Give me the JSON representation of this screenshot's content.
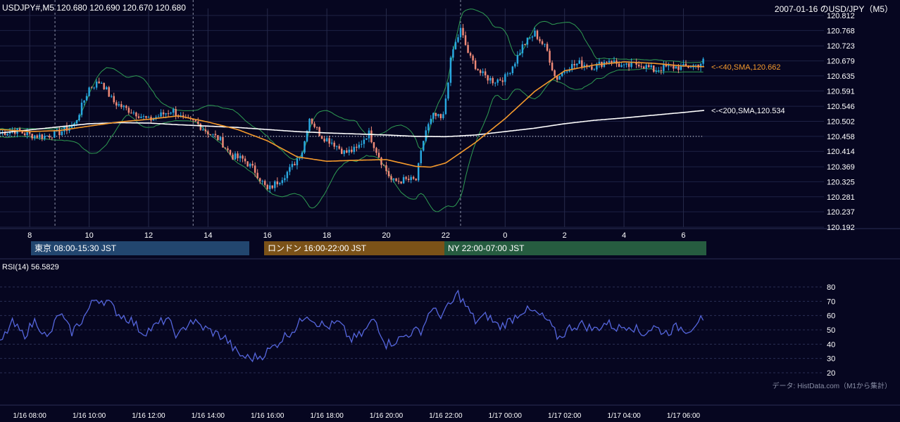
{
  "header": {
    "symbol_line": "USDJPY#,M5 120.680 120.690 120.670 120.680",
    "title": "2007-01-16 のUSD/JPY（M5）"
  },
  "colors": {
    "background": "#060620",
    "grid": "#1e2244",
    "candle_up": "#29a8e0",
    "candle_down": "#ef8a78",
    "bollinger": "#2e9b52",
    "sma40": "#f59a2c",
    "sma200": "#ffffff",
    "rsi": "#5566dd",
    "tokyo": "#2a4f7d",
    "london": "#7b5218",
    "ny": "#2a6045"
  },
  "sessions": [
    {
      "label": "東京 08:00-15:30 JST",
      "color": "#22466f"
    },
    {
      "label": "ロンドン 16:00-22:00 JST",
      "color": "#7b5218"
    },
    {
      "label": "NY 22:00-07:00 JST",
      "color": "#265c40"
    }
  ],
  "rsi": {
    "label": "RSI(14) 56.5829"
  },
  "credit": "データ: HistData.com（M1から集計）",
  "chart_data": {
    "type": "candlestick",
    "title": "2007-01-16 のUSD/JPY（M5）",
    "y_ticks": [
      "120.812",
      "120.768",
      "120.723",
      "120.679",
      "120.635",
      "120.591",
      "120.546",
      "120.502",
      "120.458",
      "120.414",
      "120.369",
      "120.325",
      "120.281",
      "120.237",
      "120.192"
    ],
    "ylim": [
      120.192,
      120.812
    ],
    "x_hour_ticks": [
      "8",
      "10",
      "12",
      "14",
      "16",
      "18",
      "20",
      "22",
      "0",
      "2",
      "4",
      "6"
    ],
    "x_hour_values": [
      8,
      10,
      12,
      14,
      16,
      18,
      20,
      22,
      24,
      26,
      28,
      30
    ],
    "xlim_hours": [
      7.0,
      30.7
    ],
    "dashed_verticals_hours": [
      8.85,
      13.5,
      22.5
    ],
    "reference_level": 120.458,
    "anchors": [
      [
        7.0,
        120.468
      ],
      [
        7.5,
        120.475
      ],
      [
        8.0,
        120.462
      ],
      [
        8.5,
        120.458
      ],
      [
        9.0,
        120.47
      ],
      [
        9.5,
        120.492
      ],
      [
        10.0,
        120.6
      ],
      [
        10.4,
        120.62
      ],
      [
        10.8,
        120.56
      ],
      [
        11.2,
        120.54
      ],
      [
        11.6,
        120.525
      ],
      [
        12.0,
        120.505
      ],
      [
        12.4,
        120.52
      ],
      [
        12.8,
        120.535
      ],
      [
        13.2,
        120.505
      ],
      [
        13.6,
        120.498
      ],
      [
        14.0,
        120.47
      ],
      [
        14.4,
        120.448
      ],
      [
        14.8,
        120.4
      ],
      [
        15.2,
        120.39
      ],
      [
        15.6,
        120.355
      ],
      [
        16.0,
        120.3
      ],
      [
        16.4,
        120.33
      ],
      [
        16.8,
        120.365
      ],
      [
        17.2,
        120.42
      ],
      [
        17.4,
        120.515
      ],
      [
        17.8,
        120.46
      ],
      [
        18.2,
        120.44
      ],
      [
        18.6,
        120.41
      ],
      [
        19.0,
        120.42
      ],
      [
        19.4,
        120.47
      ],
      [
        19.8,
        120.39
      ],
      [
        20.2,
        120.325
      ],
      [
        20.6,
        120.33
      ],
      [
        21.0,
        120.33
      ],
      [
        21.3,
        120.47
      ],
      [
        21.6,
        120.52
      ],
      [
        21.9,
        120.505
      ],
      [
        22.2,
        120.7
      ],
      [
        22.5,
        120.77
      ],
      [
        22.8,
        120.69
      ],
      [
        23.2,
        120.64
      ],
      [
        23.6,
        120.62
      ],
      [
        24.0,
        120.63
      ],
      [
        24.3,
        120.672
      ],
      [
        24.6,
        120.725
      ],
      [
        25.0,
        120.76
      ],
      [
        25.4,
        120.712
      ],
      [
        25.7,
        120.625
      ],
      [
        26.1,
        120.66
      ],
      [
        26.5,
        120.672
      ],
      [
        27.0,
        120.662
      ],
      [
        27.5,
        120.682
      ],
      [
        28.0,
        120.66
      ],
      [
        28.5,
        120.672
      ],
      [
        29.0,
        120.652
      ],
      [
        29.5,
        120.662
      ],
      [
        30.0,
        120.66
      ],
      [
        30.5,
        120.668
      ],
      [
        30.7,
        120.68
      ]
    ],
    "sma40_anchors": [
      [
        7.0,
        120.478
      ],
      [
        8.0,
        120.472
      ],
      [
        9.0,
        120.475
      ],
      [
        10.0,
        120.488
      ],
      [
        11.0,
        120.5
      ],
      [
        12.0,
        120.508
      ],
      [
        13.0,
        120.518
      ],
      [
        14.0,
        120.5
      ],
      [
        15.0,
        120.478
      ],
      [
        16.0,
        120.445
      ],
      [
        17.0,
        120.398
      ],
      [
        18.0,
        120.385
      ],
      [
        19.0,
        120.388
      ],
      [
        20.0,
        120.39
      ],
      [
        21.0,
        120.37
      ],
      [
        21.5,
        120.368
      ],
      [
        22.0,
        120.38
      ],
      [
        23.0,
        120.44
      ],
      [
        24.0,
        120.51
      ],
      [
        25.0,
        120.59
      ],
      [
        26.0,
        120.65
      ],
      [
        27.0,
        120.667
      ],
      [
        28.0,
        120.676
      ],
      [
        29.0,
        120.672
      ],
      [
        30.0,
        120.664
      ],
      [
        30.7,
        120.662
      ]
    ],
    "sma200_anchors": [
      [
        7.0,
        120.468
      ],
      [
        8.0,
        120.477
      ],
      [
        9.0,
        120.486
      ],
      [
        10.0,
        120.495
      ],
      [
        11.0,
        120.498
      ],
      [
        12.0,
        120.497
      ],
      [
        13.0,
        120.492
      ],
      [
        14.0,
        120.488
      ],
      [
        15.0,
        120.484
      ],
      [
        16.0,
        120.478
      ],
      [
        17.0,
        120.472
      ],
      [
        18.0,
        120.468
      ],
      [
        19.0,
        120.465
      ],
      [
        20.0,
        120.462
      ],
      [
        21.0,
        120.458
      ],
      [
        22.0,
        120.457
      ],
      [
        23.0,
        120.462
      ],
      [
        24.0,
        120.472
      ],
      [
        25.0,
        120.482
      ],
      [
        26.0,
        120.495
      ],
      [
        27.0,
        120.505
      ],
      [
        28.0,
        120.512
      ],
      [
        29.0,
        120.52
      ],
      [
        30.0,
        120.528
      ],
      [
        30.7,
        120.534
      ]
    ],
    "indicator_labels": {
      "sma40": "<-<40,SMA,120.662",
      "sma200": "<-<200,SMA,120.534"
    },
    "rsi_ticks": [
      "80",
      "70",
      "60",
      "50",
      "40",
      "30",
      "20"
    ],
    "rsi_ylim": [
      20,
      80
    ],
    "rsi_anchors": [
      [
        7.0,
        40
      ],
      [
        7.4,
        55
      ],
      [
        7.8,
        46
      ],
      [
        8.2,
        57
      ],
      [
        8.6,
        43
      ],
      [
        9.0,
        62
      ],
      [
        9.4,
        48
      ],
      [
        9.8,
        58
      ],
      [
        10.2,
        72
      ],
      [
        10.6,
        70
      ],
      [
        11.0,
        61
      ],
      [
        11.4,
        57
      ],
      [
        11.8,
        48
      ],
      [
        12.2,
        52
      ],
      [
        12.6,
        58
      ],
      [
        13.0,
        45
      ],
      [
        13.4,
        57
      ],
      [
        13.8,
        52
      ],
      [
        14.2,
        48
      ],
      [
        14.6,
        44
      ],
      [
        15.0,
        33
      ],
      [
        15.4,
        30
      ],
      [
        15.8,
        32
      ],
      [
        16.2,
        38
      ],
      [
        16.6,
        46
      ],
      [
        17.0,
        52
      ],
      [
        17.3,
        62
      ],
      [
        17.6,
        56
      ],
      [
        18.0,
        52
      ],
      [
        18.4,
        55
      ],
      [
        18.8,
        43
      ],
      [
        19.2,
        47
      ],
      [
        19.6,
        58
      ],
      [
        20.0,
        40
      ],
      [
        20.4,
        43
      ],
      [
        20.8,
        48
      ],
      [
        21.2,
        50
      ],
      [
        21.5,
        65
      ],
      [
        21.8,
        60
      ],
      [
        22.2,
        68
      ],
      [
        22.4,
        76
      ],
      [
        22.7,
        66
      ],
      [
        23.0,
        56
      ],
      [
        23.4,
        60
      ],
      [
        23.8,
        52
      ],
      [
        24.2,
        57
      ],
      [
        24.6,
        64
      ],
      [
        25.0,
        62
      ],
      [
        25.4,
        57
      ],
      [
        25.8,
        44
      ],
      [
        26.2,
        52
      ],
      [
        26.6,
        54
      ],
      [
        27.0,
        50
      ],
      [
        27.4,
        55
      ],
      [
        27.8,
        51
      ],
      [
        28.2,
        54
      ],
      [
        28.6,
        47
      ],
      [
        29.0,
        52
      ],
      [
        29.4,
        48
      ],
      [
        29.8,
        52
      ],
      [
        30.2,
        50
      ],
      [
        30.5,
        57
      ],
      [
        30.7,
        56.58
      ]
    ],
    "x_time_ticks": [
      "1/16 08:00",
      "1/16 10:00",
      "1/16 12:00",
      "1/16 14:00",
      "1/16 16:00",
      "1/16 18:00",
      "1/16 20:00",
      "1/16 22:00",
      "1/17 00:00",
      "1/17 02:00",
      "1/17 04:00",
      "1/17 06:00"
    ]
  }
}
